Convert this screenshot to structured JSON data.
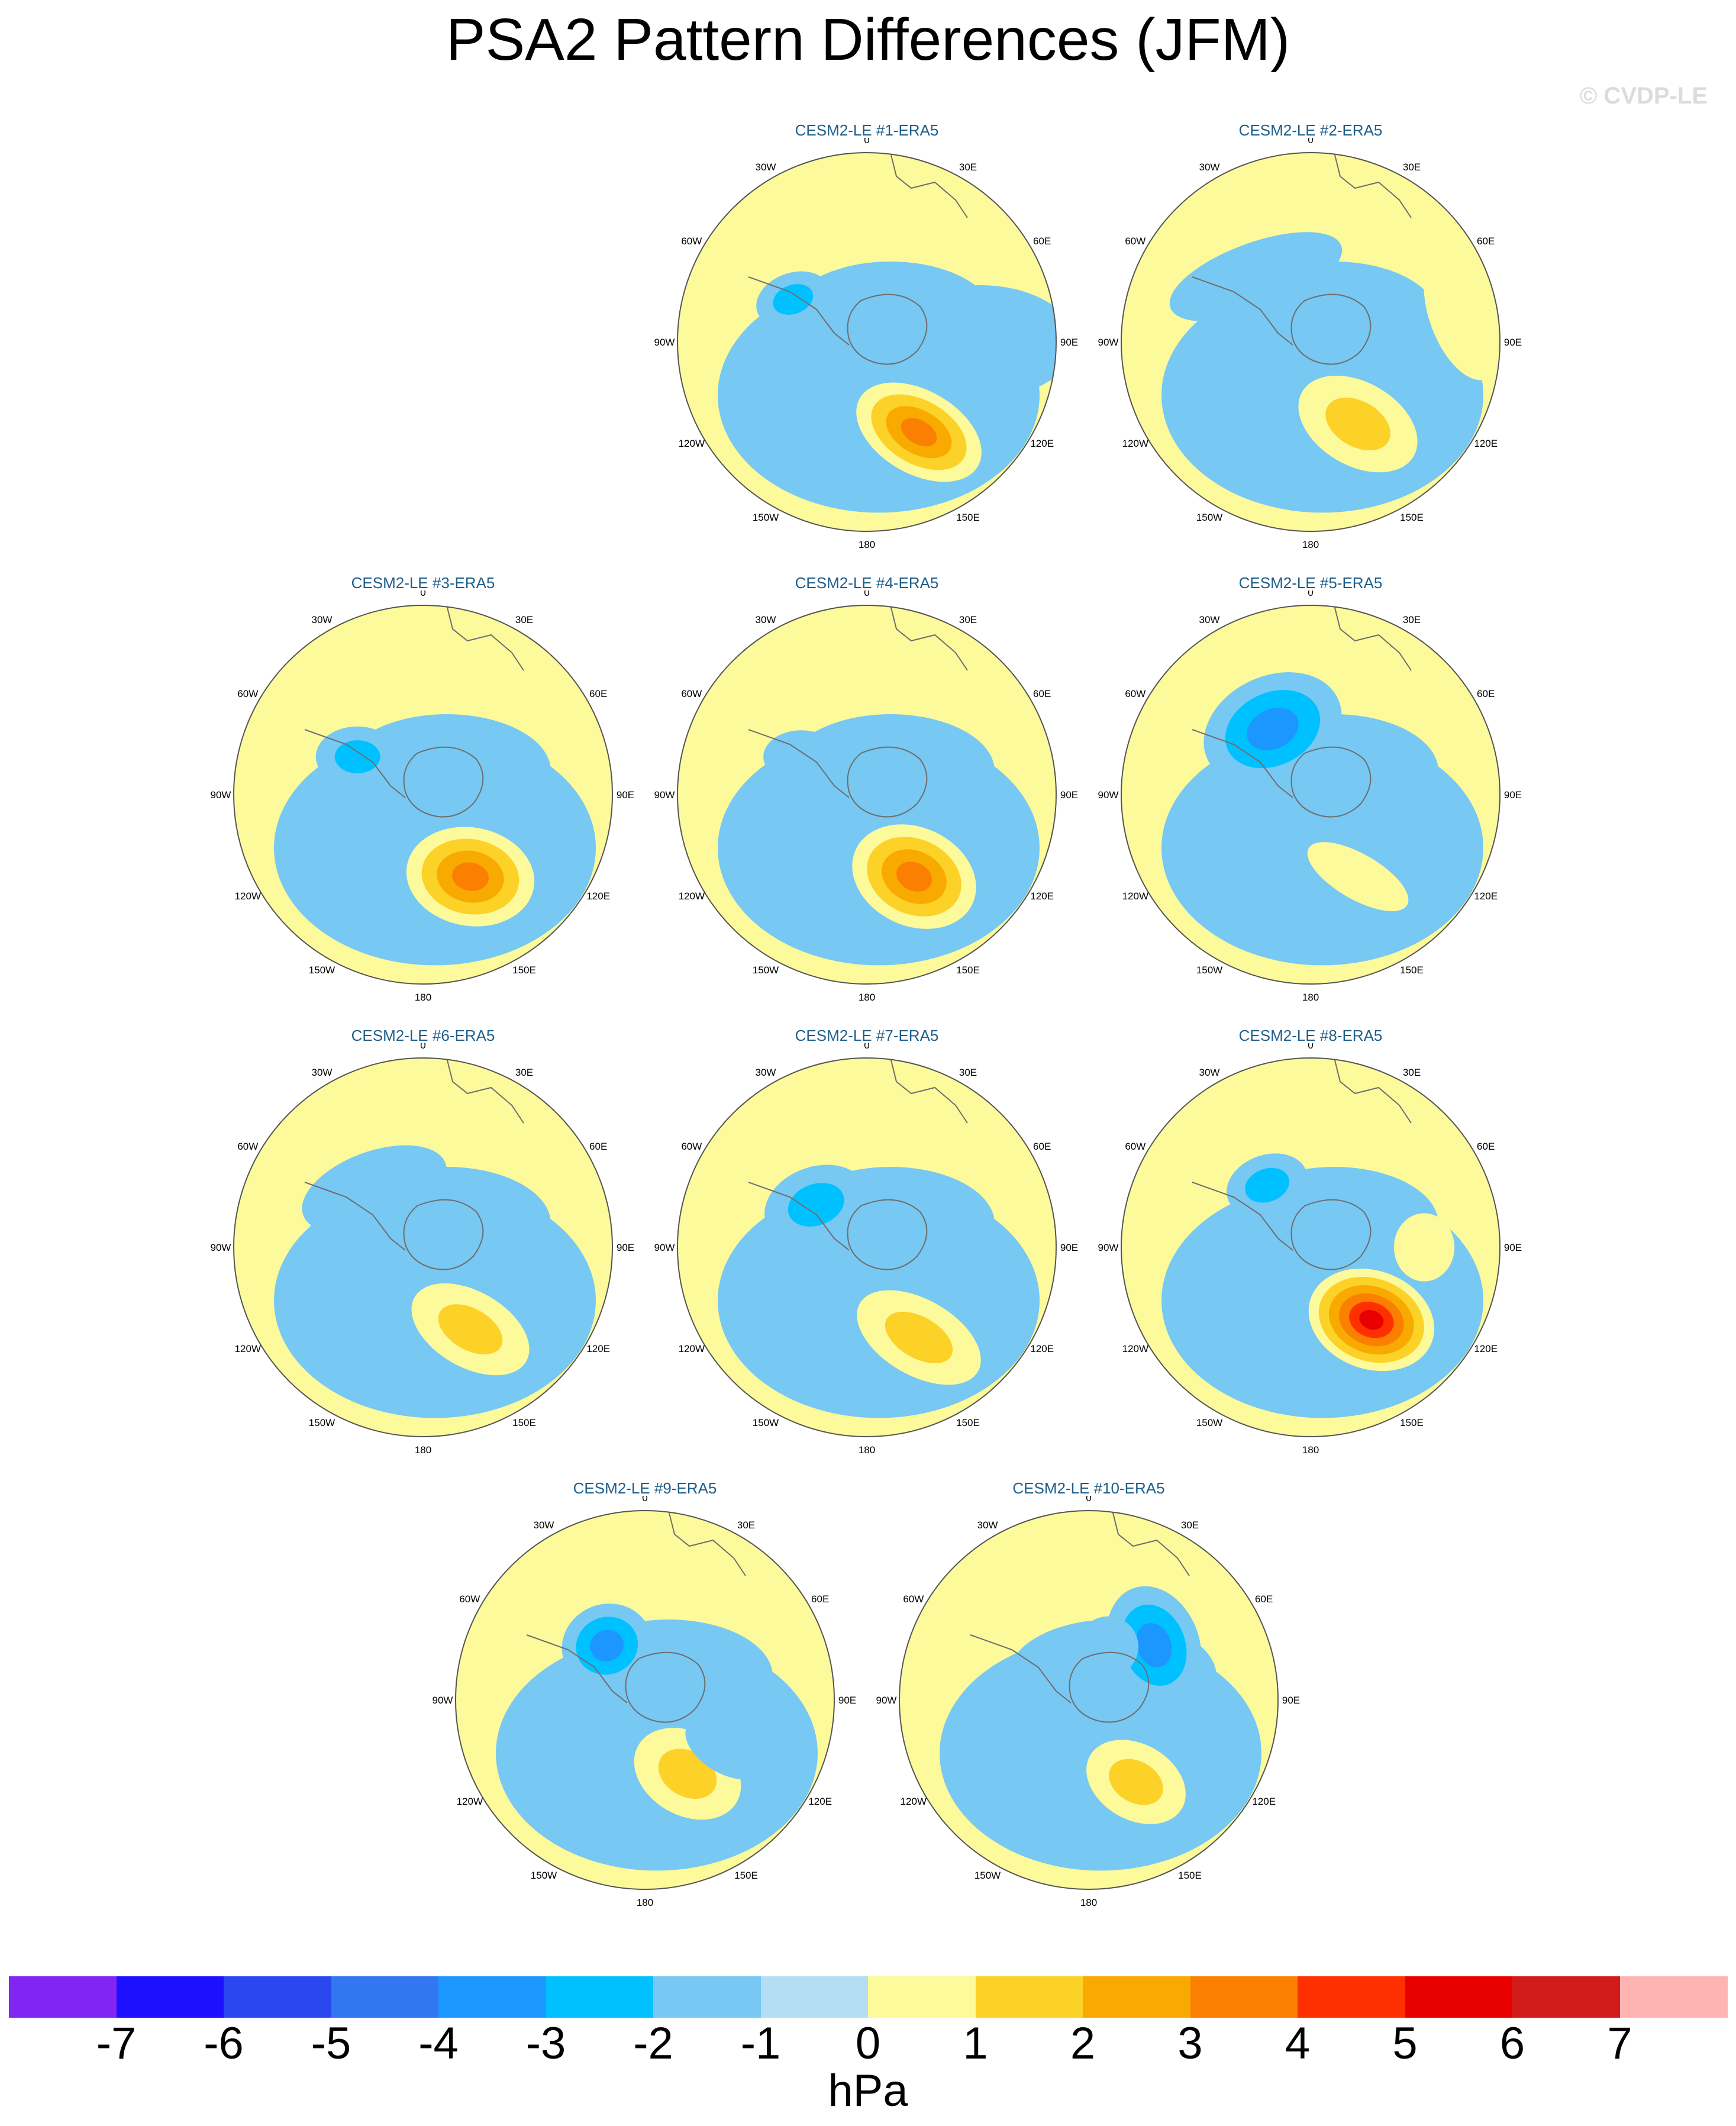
{
  "title": "PSA2 Pattern Differences (JFM)",
  "watermark": "© CVDP-LE",
  "units": "hPa",
  "lon_labels": [
    "0",
    "30E",
    "60E",
    "90E",
    "120E",
    "150E",
    "180",
    "150W",
    "120W",
    "90W",
    "60W",
    "30W"
  ],
  "colorbar": {
    "ticks": [
      "-7",
      "-6",
      "-5",
      "-4",
      "-3",
      "-2",
      "-1",
      "0",
      "1",
      "2",
      "3",
      "4",
      "5",
      "6",
      "7"
    ],
    "colors": [
      "#8125f2",
      "#1d10ff",
      "#2b48f0",
      "#3178f0",
      "#1c97ff",
      "#00c1ff",
      "#77c8f2",
      "#b3def3",
      "#fdfa9c",
      "#fcd228",
      "#f9aa00",
      "#fb7f00",
      "#ff3000",
      "#e80000",
      "#d21c1c",
      "#ffb4b4"
    ]
  },
  "panels": [
    {
      "title": "CESM2-LE #1-ERA5",
      "blobs": [
        {
          "lon": 150,
          "r": 0.55,
          "lvl": 4,
          "sx": 0.18,
          "sy": 0.11,
          "rot": 30,
          "levels": [
            1,
            2,
            3,
            4
          ]
        },
        {
          "lon": 330,
          "r": 0.78,
          "lvl": 1,
          "sx": 0.13,
          "sy": 0.07,
          "rot": -5,
          "levels": [
            1
          ]
        },
        {
          "lon": 300,
          "r": 0.45,
          "lvl": -2,
          "sx": 0.1,
          "sy": 0.07,
          "rot": -20,
          "levels": [
            -1,
            -2
          ]
        },
        {
          "lon": 90,
          "r": 0.6,
          "lvl": -1,
          "sx": 0.25,
          "sy": 0.15,
          "rot": 0,
          "levels": [
            -1
          ]
        }
      ]
    },
    {
      "title": "CESM2-LE #2-ERA5",
      "blobs": [
        {
          "lon": 150,
          "r": 0.5,
          "lvl": 2,
          "sx": 0.17,
          "sy": 0.11,
          "rot": 30,
          "levels": [
            1,
            2
          ]
        },
        {
          "lon": 320,
          "r": 0.45,
          "lvl": -1,
          "sx": 0.24,
          "sy": 0.09,
          "rot": -20,
          "levels": [
            -1
          ]
        },
        {
          "lon": 80,
          "r": 0.82,
          "lvl": 1,
          "sx": 0.09,
          "sy": 0.18,
          "rot": -20,
          "levels": [
            1
          ]
        }
      ]
    },
    {
      "title": "CESM2-LE #3-ERA5",
      "blobs": [
        {
          "lon": 150,
          "r": 0.5,
          "lvl": 4,
          "sx": 0.17,
          "sy": 0.13,
          "rot": 10,
          "levels": [
            1,
            2,
            3,
            4
          ]
        },
        {
          "lon": 340,
          "r": 0.78,
          "lvl": 1,
          "sx": 0.13,
          "sy": 0.07,
          "rot": -5,
          "levels": [
            1
          ]
        },
        {
          "lon": 300,
          "r": 0.4,
          "lvl": -2,
          "sx": 0.11,
          "sy": 0.08,
          "rot": 0,
          "levels": [
            -1,
            -2
          ]
        }
      ]
    },
    {
      "title": "CESM2-LE #4-ERA5",
      "blobs": [
        {
          "lon": 150,
          "r": 0.5,
          "lvl": 4,
          "sx": 0.17,
          "sy": 0.13,
          "rot": 25,
          "levels": [
            1,
            2,
            3,
            4
          ]
        },
        {
          "lon": 335,
          "r": 0.78,
          "lvl": 1,
          "sx": 0.11,
          "sy": 0.06,
          "rot": -5,
          "levels": [
            1
          ]
        },
        {
          "lon": 300,
          "r": 0.4,
          "lvl": -1,
          "sx": 0.1,
          "sy": 0.07,
          "rot": 0,
          "levels": [
            -1
          ]
        }
      ]
    },
    {
      "title": "CESM2-LE #5-ERA5",
      "blobs": [
        {
          "lon": 330,
          "r": 0.4,
          "lvl": -3,
          "sx": 0.19,
          "sy": 0.14,
          "rot": -25,
          "levels": [
            -1,
            -2,
            -3
          ]
        },
        {
          "lon": 150,
          "r": 0.5,
          "lvl": 1,
          "sx": 0.15,
          "sy": 0.06,
          "rot": 30,
          "levels": [
            1
          ]
        },
        {
          "lon": 210,
          "r": 0.6,
          "lvl": -1,
          "sx": 0.06,
          "sy": 0.1,
          "rot": 0,
          "levels": [
            -1
          ]
        }
      ]
    },
    {
      "title": "CESM2-LE #6-ERA5",
      "blobs": [
        {
          "lon": 150,
          "r": 0.5,
          "lvl": 2,
          "sx": 0.17,
          "sy": 0.1,
          "rot": 30,
          "levels": [
            1,
            2
          ]
        },
        {
          "lon": 320,
          "r": 0.4,
          "lvl": -1,
          "sx": 0.2,
          "sy": 0.1,
          "rot": -20,
          "levels": [
            -1
          ]
        },
        {
          "lon": 110,
          "r": 0.5,
          "lvl": -1,
          "sx": 0.08,
          "sy": 0.06,
          "rot": 0,
          "levels": [
            -1
          ]
        }
      ]
    },
    {
      "title": "CESM2-LE #7-ERA5",
      "blobs": [
        {
          "lon": 150,
          "r": 0.55,
          "lvl": 2,
          "sx": 0.18,
          "sy": 0.1,
          "rot": 30,
          "levels": [
            1,
            2
          ]
        },
        {
          "lon": 310,
          "r": 0.35,
          "lvl": -2,
          "sx": 0.14,
          "sy": 0.1,
          "rot": -20,
          "levels": [
            -1,
            -2
          ]
        }
      ]
    },
    {
      "title": "CESM2-LE #8-ERA5",
      "blobs": [
        {
          "lon": 140,
          "r": 0.5,
          "lvl": 6,
          "sx": 0.17,
          "sy": 0.13,
          "rot": 20,
          "levels": [
            1,
            2,
            3,
            4,
            5,
            6
          ]
        },
        {
          "lon": 325,
          "r": 0.4,
          "lvl": -2,
          "sx": 0.11,
          "sy": 0.08,
          "rot": -20,
          "levels": [
            -1,
            -2
          ]
        },
        {
          "lon": 90,
          "r": 0.6,
          "lvl": 1,
          "sx": 0.08,
          "sy": 0.09,
          "rot": 0,
          "levels": [
            1
          ]
        },
        {
          "lon": 335,
          "r": 0.82,
          "lvl": 1,
          "sx": 0.12,
          "sy": 0.05,
          "rot": -5,
          "levels": [
            1
          ]
        }
      ]
    },
    {
      "title": "CESM2-LE #9-ERA5",
      "blobs": [
        {
          "lon": 150,
          "r": 0.45,
          "lvl": 2,
          "sx": 0.15,
          "sy": 0.11,
          "rot": 30,
          "levels": [
            1,
            2
          ]
        },
        {
          "lon": 325,
          "r": 0.35,
          "lvl": -3,
          "sx": 0.12,
          "sy": 0.11,
          "rot": -20,
          "levels": [
            -1,
            -2,
            -3
          ]
        },
        {
          "lon": 120,
          "r": 0.5,
          "lvl": -1,
          "sx": 0.12,
          "sy": 0.07,
          "rot": 30,
          "levels": [
            -1
          ]
        }
      ]
    },
    {
      "title": "CESM2-LE #10-ERA5",
      "blobs": [
        {
          "lon": 150,
          "r": 0.5,
          "lvl": 2,
          "sx": 0.14,
          "sy": 0.1,
          "rot": 30,
          "levels": [
            1,
            2
          ]
        },
        {
          "lon": 50,
          "r": 0.45,
          "lvl": -3,
          "sx": 0.12,
          "sy": 0.16,
          "rot": -20,
          "levels": [
            -1,
            -2,
            -3
          ]
        },
        {
          "lon": 20,
          "r": 0.3,
          "lvl": -1,
          "sx": 0.08,
          "sy": 0.08,
          "rot": 0,
          "levels": [
            -1
          ]
        }
      ]
    }
  ]
}
